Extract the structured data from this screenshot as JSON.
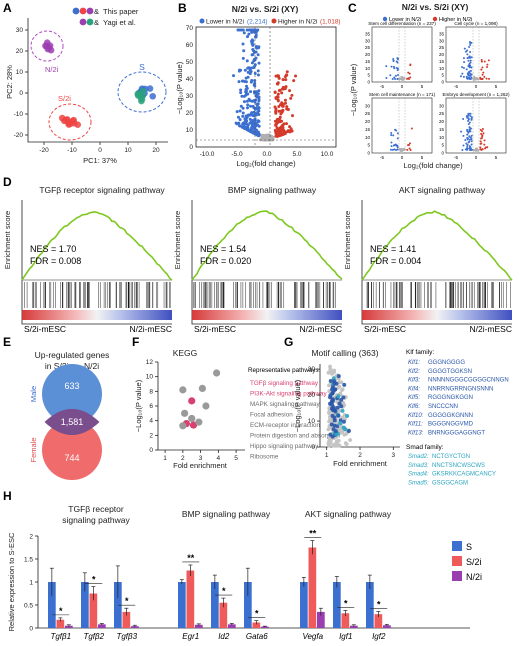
{
  "panels": {
    "A": {
      "letter": "A",
      "legend": [
        {
          "label": "This paper",
          "colors": [
            "#3b6fd0",
            "#ef4444",
            "#9b3fb0"
          ]
        },
        {
          "label": "Yagi et al.",
          "colors": [
            "#9b3fb0",
            "#2aa37a"
          ]
        }
      ],
      "legend_amp": "&",
      "xlabel": "PC1: 37%",
      "ylabel": "PC2: 28%",
      "xticks": [
        "-20",
        "-10",
        "0",
        "10",
        "20"
      ],
      "yticks": [
        "30",
        "20",
        "10",
        "0",
        "-10",
        "-20"
      ],
      "group_labels": {
        "N2i": "N/2i",
        "S2i": "S/2i",
        "S": "S"
      },
      "colors": {
        "S": "#3b6fd0",
        "S2i": "#ef4444",
        "N2i": "#9b3fb0",
        "Yagi_S": "#2aa37a"
      }
    },
    "B": {
      "letter": "B",
      "title": "N/2i vs. S/2i (XY)",
      "legend_lower": "Lower in N/2i",
      "legend_lower_n": "(2,214)",
      "legend_higher": "Higher in N/2i",
      "legend_higher_n": "(1,018)",
      "xlabel": "Log₂(fold change)",
      "ylabel": "−Log₁₀(P value)",
      "xticks": [
        "-10.0",
        "-5.0",
        "0.0",
        "5.0",
        "10.0"
      ],
      "yticks": [
        "0",
        "10",
        "20",
        "30",
        "40",
        "50",
        "60",
        "70"
      ],
      "colors": {
        "lower": "#3b6fd0",
        "higher": "#d43a2a",
        "ns": "#b0b0b0"
      }
    },
    "C": {
      "letter": "C",
      "title": "N/2i vs. S/2i (XY)",
      "legend_lower": "Lower in N/2i",
      "legend_higher": "Higher in N/2i",
      "xlabel": "Log₂(fold change)",
      "ylabel": "−Log₁₀(P value)",
      "subplots": [
        {
          "title": "Stem cell differentiation (n = 237)",
          "yticks": [
            "0",
            "5",
            "10",
            "15",
            "20",
            "25",
            "30",
            "35"
          ]
        },
        {
          "title": "Cell cycle (n = 1,098)",
          "yticks": [
            "0",
            "5",
            "10",
            "15",
            "20",
            "25",
            "30",
            "35"
          ]
        },
        {
          "title": "Stem cell maintenance (n = 171)",
          "yticks": [
            "0",
            "5",
            "10",
            "15",
            "20",
            "25",
            "30"
          ]
        },
        {
          "title": "Embryo development (n = 1,262)",
          "yticks": [
            "0",
            "5",
            "10",
            "15",
            "20",
            "25",
            "30"
          ]
        }
      ],
      "xticks": [
        "-5",
        "0",
        "5"
      ]
    },
    "D": {
      "letter": "D",
      "ylabel": "Enrichment score",
      "left_label": "S/2i-mESC",
      "right_label": "N/2i-mESC",
      "plots": [
        {
          "title": "TGFβ receptor signaling pathway",
          "nes": "NES = 1.70",
          "fdr": "FDR = 0.008",
          "yticks": [
            "0.50",
            "0.40",
            "0.30",
            "0.20",
            "0.10",
            "0.00"
          ]
        },
        {
          "title": "BMP signaling pathway",
          "nes": "NES = 1.54",
          "fdr": "FDR = 0.020",
          "yticks": [
            "0.40",
            "0.30",
            "0.20",
            "0.10",
            "0.00"
          ]
        },
        {
          "title": "AKT signaling pathway",
          "nes": "NES = 1.41",
          "fdr": "FDR = 0.004",
          "yticks": [
            "0.40",
            "0.30",
            "0.20",
            "0.10",
            "0.00"
          ]
        }
      ],
      "line_color": "#7ec820"
    },
    "E": {
      "letter": "E",
      "title_line1": "Up-regulated genes",
      "title_line2": "in S/2i vs. N/2i",
      "male_label": "Male",
      "female_label": "Female",
      "male_only": "633",
      "overlap": "1,581",
      "female_only": "744",
      "colors": {
        "male": "#5b8fd6",
        "female": "#f06b6b",
        "overlap": "#7a4d8c"
      }
    },
    "F": {
      "letter": "F",
      "title": "KEGG",
      "xlabel": "Fold enrichment",
      "ylabel": "−Log₁₀(P value)",
      "xticks": [
        "1",
        "2",
        "3",
        "4",
        "5"
      ],
      "yticks": [
        "0",
        "2",
        "4",
        "6",
        "8",
        "10",
        "12"
      ],
      "pathways_title": "Representative pathways:",
      "pathways": [
        {
          "name": "TGFβ signaling pathway",
          "highlight": true
        },
        {
          "name": "PI3K-Akt signaling pathway",
          "highlight": true
        },
        {
          "name": "MAPK signaling pathway",
          "highlight": false
        },
        {
          "name": "Focal adhesion",
          "highlight": false
        },
        {
          "name": "ECM-receptor interaction",
          "highlight": false
        },
        {
          "name": "Protein digestion and absorption",
          "highlight": false
        },
        {
          "name": "Hippo signaling pathway",
          "highlight": false
        },
        {
          "name": "Ribosome",
          "highlight": false
        }
      ],
      "colors": {
        "highlight": "#d8406e",
        "normal": "#9a9a9a"
      }
    },
    "G": {
      "letter": "G",
      "title": "Motif calling (363)",
      "xlabel": "Fold enrichment",
      "ylabel": "−Log₁₀(P value)",
      "xticks": [
        "1",
        "2",
        "3"
      ],
      "yticks": [
        "0",
        "10",
        "20",
        "30"
      ],
      "klf_title": "Klf family:",
      "klf": [
        {
          "name": "Klf1:",
          "seq": "GGGNGGGG"
        },
        {
          "name": "Klf2:",
          "seq": "GGGGTGGKSN"
        },
        {
          "name": "Klf3:",
          "seq": "NNNNNGGGCGGGGCNNGN"
        },
        {
          "name": "Klf4:",
          "seq": "NNRRNGRRNGNSNNN"
        },
        {
          "name": "Klf5:",
          "seq": "RGGGNGKGGN"
        },
        {
          "name": "Klf6:",
          "seq": "SNCCCNN"
        },
        {
          "name": "Klf10:",
          "seq": "GGGGGKGNNN"
        },
        {
          "name": "Klf11:",
          "seq": "BGGGNGGVMD"
        },
        {
          "name": "Klf13:",
          "seq": "BNRNGGGAGGNGT"
        }
      ],
      "smad_title": "Smad family:",
      "smad": [
        {
          "name": "Smad2:",
          "seq": "NCTGYCTGN"
        },
        {
          "name": "Smad3:",
          "seq": "NNCTSNCWSCWS"
        },
        {
          "name": "Smad4:",
          "seq": "GKSRKKCAGMCANCY"
        },
        {
          "name": "Smad5:",
          "seq": "GSGGCAGM"
        }
      ],
      "colors": {
        "klf": "#2956a8",
        "smad": "#2aa5c0"
      }
    },
    "H": {
      "letter": "H",
      "ylabel": "Relative expression to S-ESC",
      "group_titles": [
        [
          "TGFβ receptor",
          "signaling pathway"
        ],
        [
          "BMP signaling pathway"
        ],
        [
          "AKT signaling pathway"
        ]
      ],
      "legend": [
        {
          "label": "S",
          "color": "#3b6fd0"
        },
        {
          "label": "S/2i",
          "color": "#ef5b5b"
        },
        {
          "label": "N/2i",
          "color": "#9b3fb0"
        }
      ],
      "yticks": [
        "0",
        "0.5",
        "1",
        "1.5",
        "2"
      ]
    }
  },
  "chart_data": [
    {
      "type": "bar",
      "title": "",
      "ylabel": "Relative expression to S-ESC",
      "ylim": [
        0,
        2
      ],
      "categories": [
        "Tgfb1",
        "Tgfb2",
        "Tgfb3",
        "Egr1",
        "Id2",
        "Gata6",
        "Vegfa",
        "Igf1",
        "Igf2"
      ],
      "category_labels": [
        "Tgfβ1",
        "Tgfβ2",
        "Tgfβ3",
        "Egr1",
        "Id2",
        "Gata6",
        "Vegfa",
        "Igf1",
        "Igf2"
      ],
      "series": [
        {
          "name": "S",
          "values": [
            1.0,
            1.0,
            1.0,
            1.0,
            1.0,
            1.0,
            1.0,
            1.0,
            1.0
          ],
          "errors": [
            0.3,
            0.2,
            0.35,
            0.05,
            0.15,
            0.3,
            0.1,
            0.12,
            0.15
          ]
        },
        {
          "name": "S/2i",
          "values": [
            0.18,
            0.75,
            0.35,
            1.25,
            0.55,
            0.12,
            1.75,
            0.32,
            0.3
          ],
          "errors": [
            0.04,
            0.15,
            0.08,
            0.12,
            0.1,
            0.04,
            0.15,
            0.06,
            0.06
          ]
        },
        {
          "name": "N/2i",
          "values": [
            0.05,
            0.08,
            0.04,
            0.07,
            0.08,
            0.03,
            0.35,
            0.05,
            0.06
          ],
          "errors": [
            0.02,
            0.02,
            0.02,
            0.02,
            0.02,
            0.01,
            0.08,
            0.02,
            0.02
          ]
        }
      ],
      "significance": [
        "*",
        "*",
        "*",
        "**",
        "*",
        "*",
        "**",
        "*",
        "*"
      ]
    },
    {
      "type": "scatter",
      "title": "KEGG",
      "xlabel": "Fold enrichment",
      "ylabel": "−Log₁₀(P value)",
      "xlim": [
        1,
        5.5
      ],
      "ylim": [
        0,
        12
      ],
      "points": [
        {
          "x": 2.0,
          "y": 8.2,
          "highlight": false
        },
        {
          "x": 3.9,
          "y": 10.5,
          "highlight": false
        },
        {
          "x": 3.1,
          "y": 8.4,
          "highlight": false
        },
        {
          "x": 2.5,
          "y": 6.7,
          "highlight": true
        },
        {
          "x": 3.3,
          "y": 6.0,
          "highlight": false
        },
        {
          "x": 2.1,
          "y": 5.0,
          "highlight": false
        },
        {
          "x": 2.5,
          "y": 4.3,
          "highlight": false
        },
        {
          "x": 2.2,
          "y": 3.6,
          "highlight": true
        },
        {
          "x": 2.6,
          "y": 3.4,
          "highlight": true
        },
        {
          "x": 2.9,
          "y": 3.8,
          "highlight": false
        },
        {
          "x": 2.0,
          "y": 3.3,
          "highlight": false
        }
      ]
    }
  ]
}
